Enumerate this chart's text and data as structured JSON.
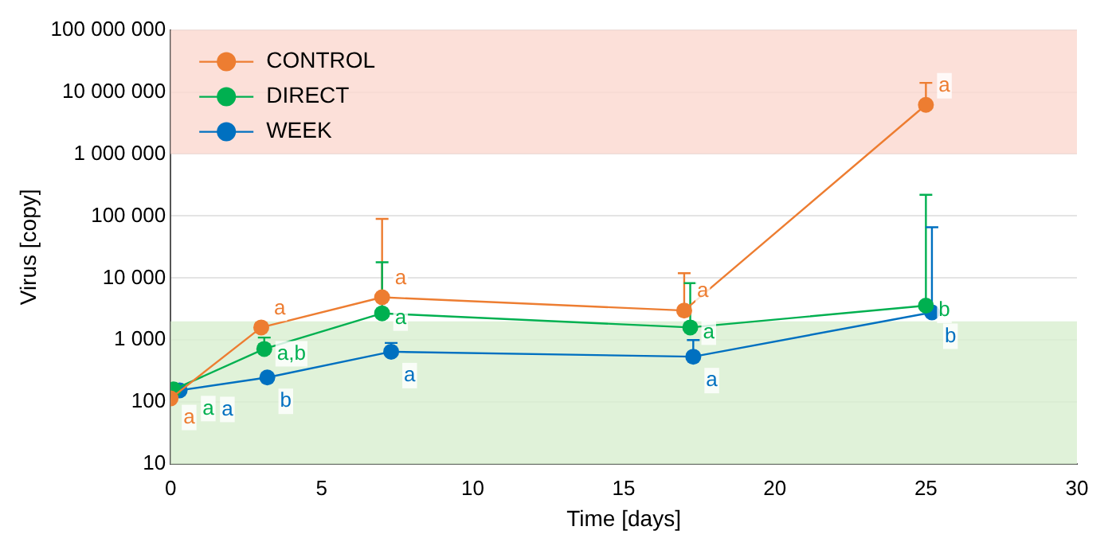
{
  "chart_data": {
    "type": "line",
    "xlabel": "Time [days]",
    "ylabel": "Virus [copy]",
    "xlim": [
      0,
      30
    ],
    "xticks": [
      0,
      5,
      10,
      15,
      20,
      25,
      30
    ],
    "ylim": [
      10,
      100000000
    ],
    "yticks": [
      10,
      100,
      {
        "value": 1000,
        "label": "1 000"
      },
      {
        "value": 10000,
        "label": "10 000"
      },
      {
        "value": 100000,
        "label": "100 000"
      },
      {
        "value": 1000000,
        "label": "1 000 000"
      },
      {
        "value": 10000000,
        "label": "10 000 000"
      },
      {
        "value": 100000000,
        "label": "100 000 000"
      }
    ],
    "log": "y",
    "grid": "y",
    "legend": "top left",
    "marker": "circle",
    "line_style": "solid",
    "bands": [
      {
        "axis": "y",
        "from": 1000000,
        "to": 100000000,
        "color": "#fbd8d0"
      },
      {
        "axis": "y",
        "from": 10,
        "to": 2000,
        "color": "#d8efd0"
      }
    ],
    "series": [
      {
        "name": "CONTROL",
        "color": "#ed7d31",
        "x": [
          0,
          3,
          7,
          17,
          25
        ],
        "values": [
          115,
          1600,
          4900,
          3000,
          6200000
        ],
        "errors": [
          null,
          null,
          [
            4900,
            90000
          ],
          [
            3000,
            12000
          ],
          [
            6200000,
            14000000
          ]
        ],
        "value_labels": [
          "a",
          "a",
          "a",
          "a",
          "a"
        ]
      },
      {
        "name": "DIRECT",
        "color": "#00b050",
        "x": [
          0.1,
          3.1,
          7,
          17.2,
          25
        ],
        "values": [
          160,
          720,
          2700,
          1600,
          3600
        ],
        "errors": [
          null,
          [
            720,
            1100
          ],
          [
            2700,
            18000
          ],
          [
            1600,
            8300
          ],
          [
            3600,
            220000
          ]
        ],
        "value_labels": [
          "a",
          "a,b",
          "a",
          "a",
          "b"
        ]
      },
      {
        "name": "WEEK",
        "color": "#0070c0",
        "x": [
          0.3,
          3.2,
          7.3,
          17.3,
          25.2
        ],
        "values": [
          155,
          250,
          650,
          540,
          2800
        ],
        "errors": [
          null,
          null,
          [
            650,
            900
          ],
          [
            540,
            1000
          ],
          [
            2800,
            66000
          ]
        ],
        "value_labels": [
          "a",
          "b",
          "a",
          "a",
          "b"
        ]
      }
    ]
  }
}
